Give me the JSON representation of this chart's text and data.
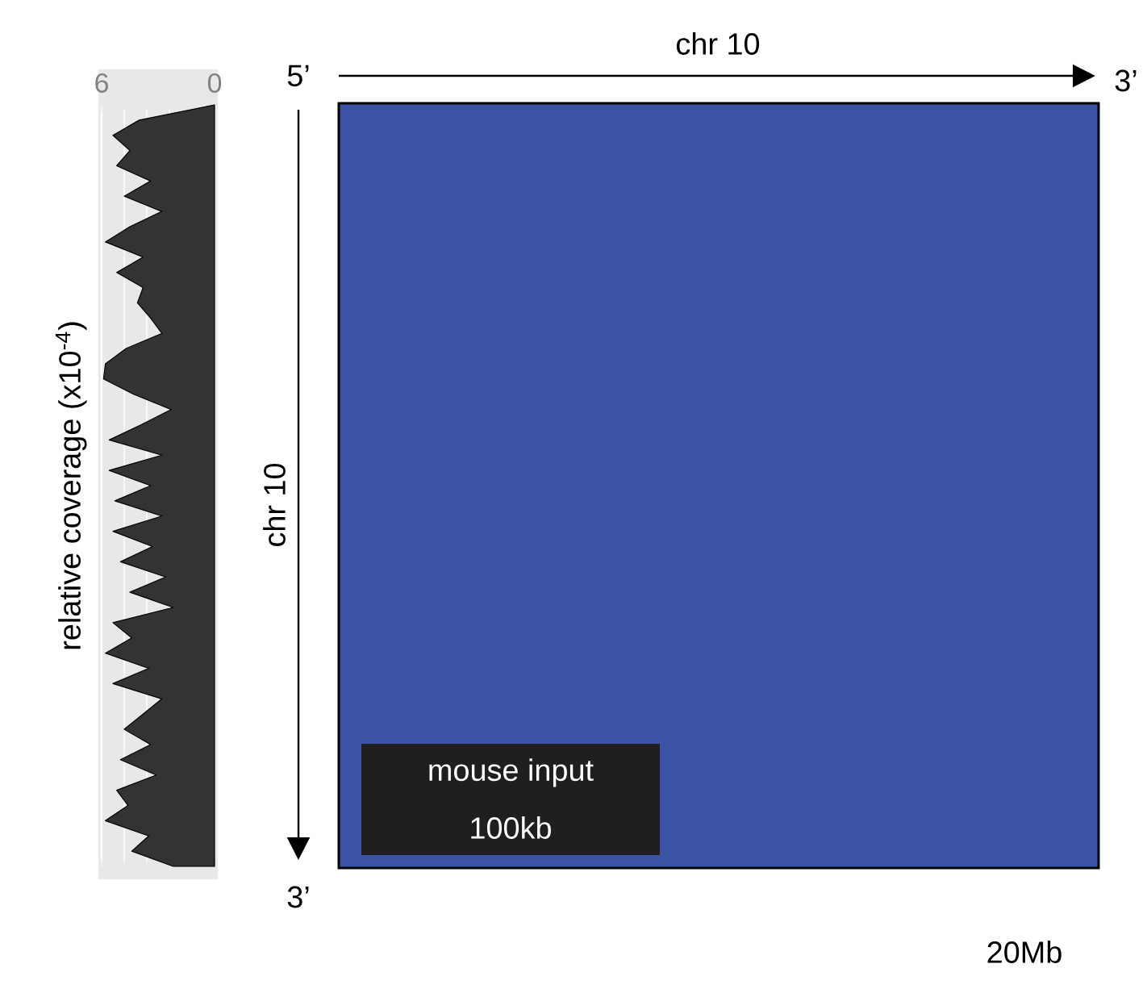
{
  "chart_data": [
    {
      "type": "area",
      "orientation": "horizontal",
      "ylabel": "relative coverage (x10$^{-4}$)",
      "xlim": [
        6,
        0
      ],
      "xticks": [
        6,
        0
      ],
      "grid": "x",
      "color": "#333333",
      "categories": [
        null,
        null,
        null,
        null,
        null,
        null,
        null,
        null,
        null,
        null,
        null,
        null,
        null,
        null,
        null,
        null,
        null,
        null,
        null,
        null,
        null,
        null,
        null,
        null,
        null,
        null,
        null,
        null,
        null,
        null,
        null,
        null,
        null,
        null,
        null,
        null,
        null,
        null,
        null,
        null,
        null,
        null,
        null,
        null,
        null,
        null,
        null,
        null,
        null,
        null,
        null
      ],
      "values": [
        0,
        4.0,
        5.4,
        4.5,
        5.2,
        3.4,
        4.8,
        2.8,
        4.5,
        5.8,
        3.8,
        5.2,
        3.8,
        4.1,
        3.4,
        2.8,
        4.7,
        5.8,
        5.9,
        4.3,
        2.3,
        3.9,
        5.6,
        2.8,
        5.6,
        3.4,
        5.3,
        2.8,
        5.4,
        3.3,
        5.0,
        2.6,
        4.5,
        2.2,
        5.4,
        4.4,
        5.8,
        3.5,
        5.4,
        2.8,
        3.8,
        4.8,
        3.4,
        5.0,
        3.1,
        5.2,
        4.6,
        5.8,
        3.5,
        4.4,
        2.2
      ]
    },
    {
      "type": "other",
      "title": "chr 10",
      "ylabel": "chr 10",
      "color": "#3a53a4",
      "annotations": [
        "5’",
        "3’",
        "3’",
        "mouse input",
        "100kb",
        "20Mb"
      ]
    }
  ]
}
